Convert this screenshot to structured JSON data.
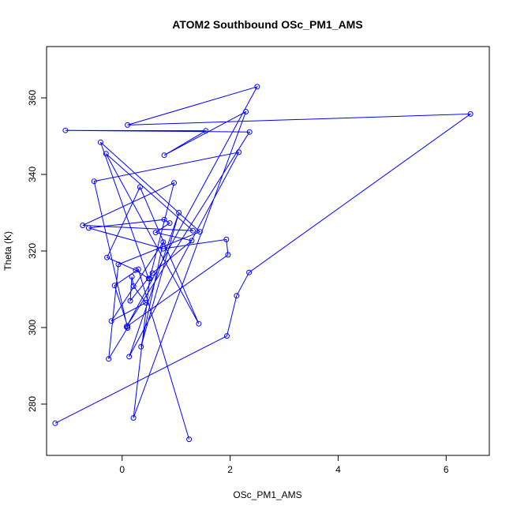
{
  "chart_data": {
    "type": "line",
    "title": "ATOM2 Southbound OSc_PM1_AMS",
    "xlabel": "OSc_PM1_AMS",
    "ylabel": "Theta (K)",
    "xlim": [
      -1.4,
      6.8
    ],
    "ylim": [
      266.6,
      373.4
    ],
    "x_ticks": [
      0,
      2,
      4,
      6
    ],
    "y_ticks": [
      280,
      300,
      320,
      340,
      360
    ],
    "grid": false,
    "legend": "none",
    "colors": {
      "series": "#0000ff",
      "axes": "#000000"
    },
    "series": [
      {
        "x": [
          -1.24,
          1.94,
          2.12,
          2.35,
          6.45,
          0.1,
          2.5,
          0.08,
          2.36,
          -1.05,
          1.55,
          0.78,
          2.29,
          0.21,
          0.51,
          0.96,
          -0.73,
          1.31,
          -0.3,
          1.42,
          0.33,
          -0.28,
          0.25,
          0.49,
          -0.4,
          1.44,
          -0.07,
          -0.25,
          0.1,
          -0.52,
          2.16,
          0.13,
          1.05,
          0.35,
          0.76,
          -0.2,
          0.44,
          0.21,
          0.18,
          0.15,
          0.56,
          1.29,
          0.62,
          0.88,
          0.78,
          -0.62,
          0.76,
          1.93,
          1.96,
          0.1,
          -0.14,
          0.3,
          1.24
        ],
        "y": [
          275.0,
          297.8,
          308.3,
          314.4,
          355.8,
          352.9,
          362.9,
          300.2,
          351.1,
          351.5,
          351.4,
          345.0,
          356.4,
          276.4,
          312.8,
          337.8,
          326.7,
          325.3,
          345.4,
          301.0,
          336.7,
          318.3,
          315.0,
          312.8,
          348.4,
          325.0,
          316.5,
          291.8,
          299.9,
          338.2,
          345.8,
          292.4,
          330.0,
          295.0,
          322.3,
          301.7,
          306.5,
          310.8,
          313.3,
          307.0,
          314.2,
          322.7,
          324.8,
          327.3,
          328.2,
          326.0,
          320.6,
          323.0,
          319.0,
          300.4,
          311.0,
          315.2,
          270.8
        ]
      }
    ]
  }
}
